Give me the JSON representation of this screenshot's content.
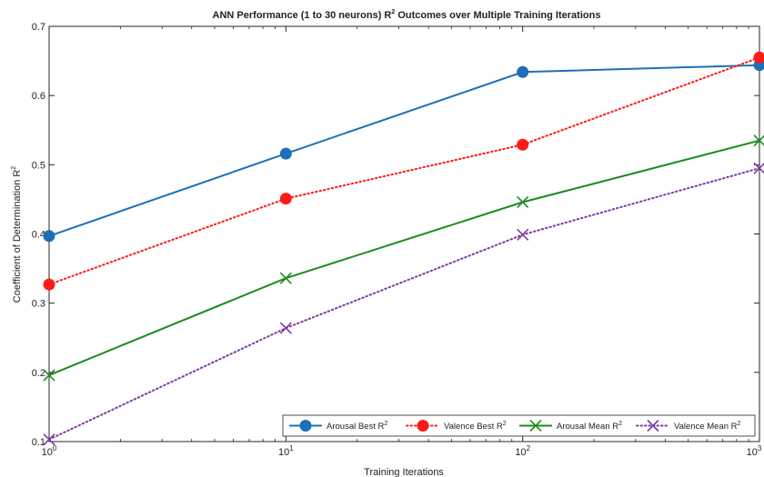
{
  "chart_data": {
    "type": "line",
    "title": "ANN Performance (1 to 30 neurons) R",
    "title_sup": "2",
    "title_tail": " Outcomes over Multiple Training Iterations",
    "xlabel": "Training Iterations",
    "ylabel": "Coefficient of Determination R",
    "ylabel_sup": "2",
    "x_scale": "log",
    "x": [
      1,
      10,
      100,
      1000
    ],
    "xlim": [
      1,
      1000
    ],
    "ylim": [
      0.1,
      0.7
    ],
    "x_ticks": [
      {
        "value": 1,
        "base": "10",
        "exp": "0"
      },
      {
        "value": 10,
        "base": "10",
        "exp": "1"
      },
      {
        "value": 100,
        "base": "10",
        "exp": "2"
      },
      {
        "value": 1000,
        "base": "10",
        "exp": "3"
      }
    ],
    "y_ticks": [
      {
        "value": 0.1,
        "label": "0.1"
      },
      {
        "value": 0.2,
        "label": "0.2"
      },
      {
        "value": 0.3,
        "label": "0.3"
      },
      {
        "value": 0.4,
        "label": "0.4"
      },
      {
        "value": 0.5,
        "label": "0.5"
      },
      {
        "value": 0.6,
        "label": "0.6"
      },
      {
        "value": 0.7,
        "label": "0.7"
      }
    ],
    "grid": false,
    "legend_position": "bottom-right",
    "series": [
      {
        "name": "Arousal Best R",
        "name_sup": "2",
        "values": [
          0.397,
          0.516,
          0.634,
          0.644
        ],
        "color": "#1f6fb8",
        "marker": "circle",
        "dash": "solid"
      },
      {
        "name": "Valence Best R",
        "name_sup": "2",
        "values": [
          0.327,
          0.451,
          0.529,
          0.655
        ],
        "color": "#ff1a1a",
        "marker": "circle",
        "dash": "dotted"
      },
      {
        "name": "Arousal Mean R",
        "name_sup": "2",
        "values": [
          0.196,
          0.336,
          0.446,
          0.535
        ],
        "color": "#1e8a1e",
        "marker": "x",
        "dash": "solid"
      },
      {
        "name": "Valence Mean R",
        "name_sup": "2",
        "values": [
          0.103,
          0.264,
          0.399,
          0.495
        ],
        "color": "#7d3aa3",
        "marker": "x",
        "dash": "dotted"
      }
    ]
  }
}
